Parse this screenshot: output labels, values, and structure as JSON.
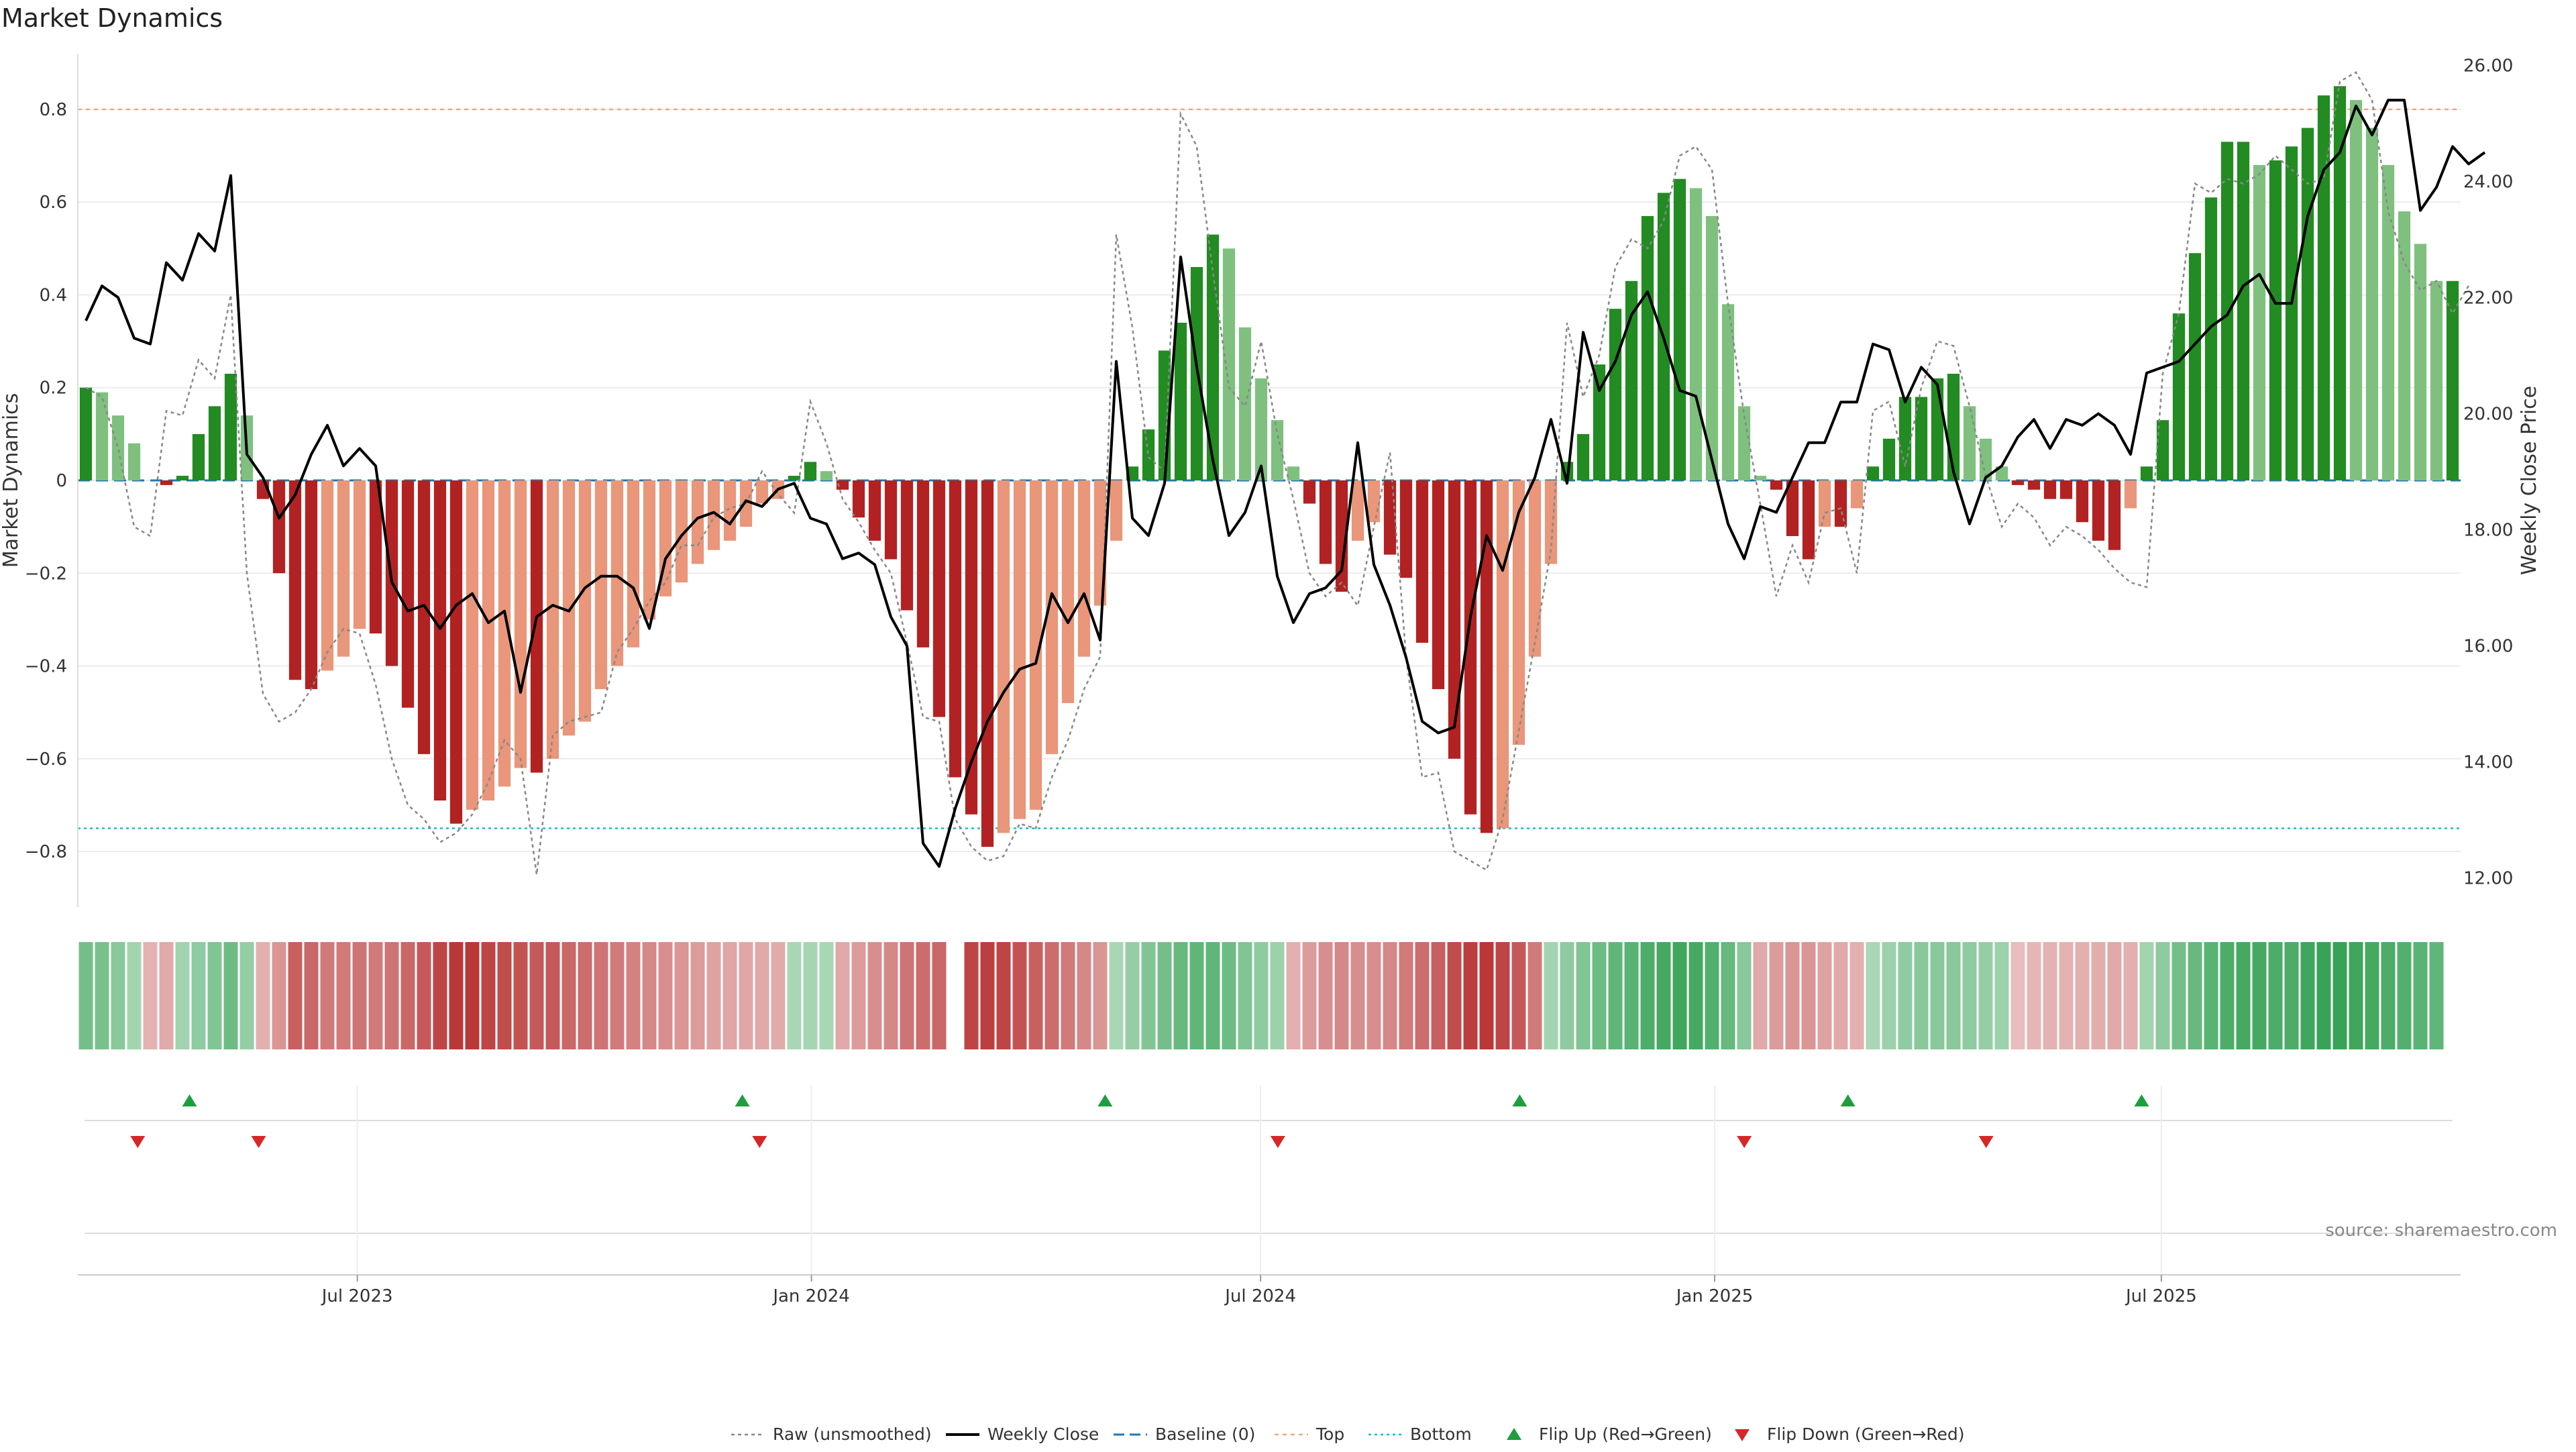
{
  "chart_data": {
    "type": "bar",
    "title": "Market Dynamics",
    "ylabel_left": "Market Dynamics",
    "ylabel_right": "Weekly Close Price",
    "ylim_left": [
      -0.92,
      0.92
    ],
    "ylim_right": [
      11.5,
      26.2
    ],
    "yticks_left": [
      -0.8,
      -0.6,
      -0.4,
      -0.2,
      0,
      0.2,
      0.4,
      0.6,
      0.8
    ],
    "ytick_labels_left": [
      "−0.8",
      "−0.6",
      "−0.4",
      "−0.2",
      "0",
      "0.2",
      "0.4",
      "0.6",
      "0.8"
    ],
    "yticks_right": [
      12,
      14,
      16,
      18,
      20,
      22,
      24,
      26
    ],
    "ytick_labels_right": [
      "12.00",
      "14.00",
      "16.00",
      "18.00",
      "20.00",
      "22.00",
      "24.00",
      "26.00"
    ],
    "top_level": 0.8,
    "bottom_level": -0.75,
    "grid": "horizontal",
    "x_start": "2023-03-13",
    "x_end": "2025-10-27",
    "x_ticks": [
      {
        "date": "2023-07-01",
        "label": "Jul 2023"
      },
      {
        "date": "2024-01-01",
        "label": "Jan 2024"
      },
      {
        "date": "2024-07-01",
        "label": "Jul 2024"
      },
      {
        "date": "2025-01-01",
        "label": "Jan 2025"
      },
      {
        "date": "2025-07-01",
        "label": "Jul 2025"
      }
    ],
    "bars": [
      0.2,
      0.19,
      0.14,
      0.08,
      0,
      -0.01,
      0.01,
      0.1,
      0.16,
      0.23,
      0.14,
      -0.04,
      -0.2,
      -0.43,
      -0.45,
      -0.41,
      -0.38,
      -0.32,
      -0.33,
      -0.4,
      -0.49,
      -0.59,
      -0.69,
      -0.74,
      -0.71,
      -0.69,
      -0.66,
      -0.62,
      -0.63,
      -0.6,
      -0.55,
      -0.52,
      -0.45,
      -0.4,
      -0.36,
      -0.3,
      -0.25,
      -0.22,
      -0.18,
      -0.15,
      -0.13,
      -0.1,
      -0.05,
      -0.04,
      0.01,
      0.04,
      0.02,
      -0.02,
      -0.08,
      -0.13,
      -0.17,
      -0.28,
      -0.36,
      -0.51,
      -0.64,
      -0.72,
      -0.79,
      -0.76,
      -0.73,
      -0.71,
      -0.59,
      -0.48,
      -0.38,
      -0.27,
      -0.13,
      0.03,
      0.11,
      0.28,
      0.34,
      0.46,
      0.53,
      0.5,
      0.33,
      0.22,
      0.13,
      0.03,
      -0.05,
      -0.18,
      -0.24,
      -0.13,
      -0.09,
      -0.16,
      -0.21,
      -0.35,
      -0.45,
      -0.6,
      -0.72,
      -0.76,
      -0.75,
      -0.57,
      -0.38,
      -0.18,
      0.04,
      0.1,
      0.25,
      0.37,
      0.43,
      0.57,
      0.62,
      0.65,
      0.63,
      0.57,
      0.38,
      0.16,
      0.01,
      -0.02,
      -0.12,
      -0.17,
      -0.1,
      -0.1,
      -0.06,
      0.03,
      0.09,
      0.18,
      0.18,
      0.22,
      0.23,
      0.16,
      0.09,
      0.03,
      -0.01,
      -0.02,
      -0.04,
      -0.04,
      -0.09,
      -0.13,
      -0.15,
      -0.06,
      0.03,
      0.13,
      0.36,
      0.49,
      0.61,
      0.73,
      0.73,
      0.68,
      0.69,
      0.72,
      0.76,
      0.83,
      0.85,
      0.82,
      0.76,
      0.68,
      0.58,
      0.51,
      0.43,
      0.43
    ],
    "raw": [
      0.2,
      0.18,
      0.07,
      -0.1,
      -0.12,
      0.15,
      0.14,
      0.26,
      0.22,
      0.4,
      -0.2,
      -0.46,
      -0.52,
      -0.5,
      -0.45,
      -0.37,
      -0.32,
      -0.33,
      -0.44,
      -0.6,
      -0.7,
      -0.73,
      -0.78,
      -0.76,
      -0.72,
      -0.65,
      -0.56,
      -0.6,
      -0.85,
      -0.55,
      -0.52,
      -0.51,
      -0.5,
      -0.37,
      -0.32,
      -0.26,
      -0.22,
      -0.14,
      -0.14,
      -0.08,
      -0.06,
      -0.05,
      0.02,
      -0.03,
      -0.07,
      0.17,
      0.08,
      -0.04,
      -0.09,
      -0.15,
      -0.2,
      -0.35,
      -0.51,
      -0.52,
      -0.73,
      -0.79,
      -0.82,
      -0.81,
      -0.74,
      -0.75,
      -0.64,
      -0.56,
      -0.45,
      -0.38,
      0.53,
      0.33,
      0.05,
      0.02,
      0.79,
      0.72,
      0.45,
      0.2,
      0.16,
      0.3,
      0.1,
      -0.04,
      -0.2,
      -0.25,
      -0.22,
      -0.27,
      -0.1,
      0.06,
      -0.38,
      -0.64,
      -0.63,
      -0.8,
      -0.82,
      -0.84,
      -0.73,
      -0.54,
      -0.35,
      -0.15,
      0.34,
      0.18,
      0.27,
      0.46,
      0.52,
      0.5,
      0.56,
      0.7,
      0.72,
      0.67,
      0.38,
      0.14,
      -0.05,
      -0.25,
      -0.14,
      -0.22,
      -0.07,
      -0.06,
      -0.2,
      0.15,
      0.17,
      0.03,
      0.2,
      0.3,
      0.29,
      0.16,
      0.01,
      -0.1,
      -0.05,
      -0.08,
      -0.14,
      -0.1,
      -0.12,
      -0.15,
      -0.19,
      -0.22,
      -0.23,
      0.23,
      0.36,
      0.64,
      0.62,
      0.65,
      0.64,
      0.66,
      0.7,
      0.67,
      0.64,
      0.65,
      0.86,
      0.88,
      0.82,
      0.58,
      0.47,
      0.41,
      0.43,
      0.36,
      0.42
    ],
    "close": [
      21.6,
      22.2,
      22.0,
      21.3,
      21.2,
      22.6,
      22.3,
      23.1,
      22.8,
      24.1,
      19.3,
      18.9,
      18.2,
      18.6,
      19.3,
      19.8,
      19.1,
      19.4,
      19.1,
      17.1,
      16.6,
      16.7,
      16.3,
      16.7,
      16.9,
      16.4,
      16.6,
      15.2,
      16.5,
      16.7,
      16.6,
      17.0,
      17.2,
      17.2,
      17.0,
      16.3,
      17.5,
      17.9,
      18.2,
      18.3,
      18.1,
      18.5,
      18.4,
      18.7,
      18.8,
      18.2,
      18.1,
      17.5,
      17.6,
      17.4,
      16.5,
      16.0,
      12.6,
      12.2,
      13.2,
      14.0,
      14.7,
      15.2,
      15.6,
      15.7,
      16.9,
      16.4,
      16.9,
      16.1,
      20.9,
      18.2,
      17.9,
      18.8,
      22.7,
      20.8,
      19.2,
      17.9,
      18.3,
      19.1,
      17.2,
      16.4,
      16.9,
      17.0,
      17.3,
      19.5,
      17.4,
      16.7,
      15.8,
      14.7,
      14.5,
      14.6,
      16.5,
      17.9,
      17.3,
      18.3,
      18.9,
      19.9,
      18.8,
      21.4,
      20.4,
      20.9,
      21.7,
      22.1,
      21.3,
      20.4,
      20.3,
      19.2,
      18.1,
      17.5,
      18.4,
      18.3,
      18.9,
      19.5,
      19.5,
      20.2,
      20.2,
      21.2,
      21.1,
      20.2,
      20.8,
      20.5,
      19.0,
      18.1,
      18.9,
      19.1,
      19.6,
      19.9,
      19.4,
      19.9,
      19.8,
      20.0,
      19.8,
      19.3,
      20.7,
      20.8,
      20.9,
      21.2,
      21.5,
      21.7,
      22.2,
      22.4,
      21.9,
      21.9,
      23.4,
      24.2,
      24.5,
      25.3,
      24.8,
      25.4,
      25.4,
      23.5,
      23.9,
      24.6,
      24.3,
      24.5
    ],
    "heat_strip": [
      0.75,
      0.72,
      0.6,
      0.4,
      -0.28,
      -0.35,
      0.42,
      0.55,
      0.65,
      0.8,
      0.5,
      -0.3,
      -0.5,
      -0.9,
      -0.85,
      -0.7,
      -0.7,
      -0.75,
      -0.7,
      -0.75,
      -0.85,
      -0.95,
      -1.1,
      -1.2,
      -1.2,
      -1.1,
      -1.05,
      -1.0,
      -0.95,
      -0.95,
      -0.85,
      -0.8,
      -0.75,
      -0.7,
      -0.65,
      -0.6,
      -0.55,
      -0.5,
      -0.45,
      -0.4,
      -0.38,
      -0.36,
      -0.35,
      -0.33,
      0.35,
      0.38,
      0.36,
      -0.35,
      -0.45,
      -0.55,
      -0.6,
      -0.75,
      -0.8,
      -0.85,
      null,
      -1.1,
      -1.15,
      -1.1,
      -1.0,
      -0.9,
      -0.8,
      -0.7,
      -0.6,
      -0.5,
      0.35,
      0.5,
      0.65,
      0.75,
      0.85,
      0.9,
      0.9,
      0.8,
      0.65,
      0.55,
      0.45,
      -0.3,
      -0.45,
      -0.55,
      -0.6,
      -0.55,
      -0.55,
      -0.6,
      -0.7,
      -0.8,
      -0.9,
      -1.05,
      -1.15,
      -1.2,
      -1.1,
      -0.95,
      -0.7,
      0.4,
      0.55,
      0.65,
      0.8,
      0.9,
      0.95,
      1.05,
      1.1,
      1.15,
      1.1,
      1.0,
      0.85,
      0.6,
      -0.35,
      -0.45,
      -0.5,
      -0.5,
      -0.4,
      -0.35,
      -0.3,
      0.35,
      0.45,
      0.55,
      0.6,
      0.6,
      0.6,
      0.55,
      0.5,
      0.45,
      -0.2,
      -0.25,
      -0.28,
      -0.28,
      -0.3,
      -0.32,
      -0.35,
      -0.3,
      0.4,
      0.55,
      0.75,
      0.85,
      0.95,
      1.05,
      1.1,
      1.1,
      1.05,
      1.05,
      1.15,
      1.2,
      1.2,
      1.15,
      1.1,
      1.05,
      1.0,
      0.95,
      0.9
    ],
    "flip_up": [
      "2023-04-24",
      "2023-12-04",
      "2024-04-29",
      "2024-10-14",
      "2025-02-24",
      "2025-06-23"
    ],
    "flip_down": [
      "2023-04-03",
      "2023-05-22",
      "2023-12-11",
      "2024-07-08",
      "2025-01-13",
      "2025-04-21"
    ],
    "colors": {
      "pos_strong": "#228b22",
      "pos_weak": "#7fc07f",
      "neg_strong": "#b22222",
      "neg_weak": "#e9967a",
      "close_line": "#000000",
      "raw_line": "#888888",
      "baseline": "#1f77b4",
      "top": "#f4a582",
      "bottom": "#17becf",
      "flip_up": "#1e9e3e",
      "flip_down": "#d62728",
      "grid": "#ececec"
    },
    "legend": {
      "placement": "bottom-center",
      "items": [
        {
          "key": "raw",
          "label": "Raw (unsmoothed)"
        },
        {
          "key": "close",
          "label": "Weekly Close"
        },
        {
          "key": "baseline",
          "label": "Baseline (0)"
        },
        {
          "key": "top",
          "label": "Top"
        },
        {
          "key": "bottom",
          "label": "Bottom"
        },
        {
          "key": "flipup",
          "label": "Flip Up (Red→Green)"
        },
        {
          "key": "flipdown",
          "label": "Flip Down (Green→Red)"
        }
      ]
    },
    "source": "source: sharemaestro.com"
  }
}
